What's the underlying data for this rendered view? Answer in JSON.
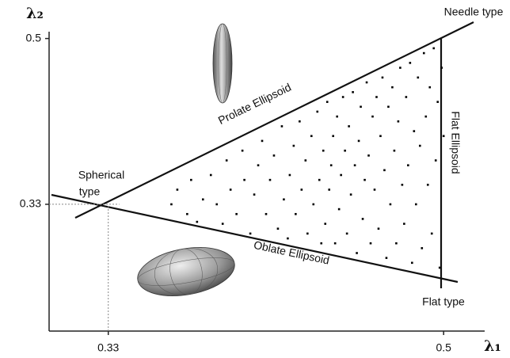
{
  "chart_data": {
    "type": "scatter",
    "x_label": "λ₁",
    "y_label": "λ₂",
    "annotations": [
      "Needle type",
      "Prolate Ellipsoid",
      "Flat Ellipsoid",
      "Spherical",
      "type",
      "Oblate Ellipsoid",
      "Flat type"
    ],
    "xlim": [
      0.3,
      0.52
    ],
    "ylim": [
      0.2,
      0.507
    ],
    "xticks": [
      0.33,
      0.5
    ],
    "yticks": [
      0.33,
      0.5
    ],
    "color": "#000000",
    "x": [
      0.362,
      0.365,
      0.37,
      0.372,
      0.378,
      0.375,
      0.382,
      0.385,
      0.388,
      0.39,
      0.392,
      0.395,
      0.398,
      0.399,
      0.402,
      0.404,
      0.406,
      0.408,
      0.41,
      0.412,
      0.414,
      0.416,
      0.418,
      0.419,
      0.421,
      0.422,
      0.424,
      0.425,
      0.427,
      0.428,
      0.43,
      0.431,
      0.433,
      0.434,
      0.436,
      0.437,
      0.438,
      0.439,
      0.44,
      0.441,
      0.442,
      0.443,
      0.444,
      0.445,
      0.446,
      0.447,
      0.448,
      0.449,
      0.45,
      0.451,
      0.452,
      0.453,
      0.454,
      0.455,
      0.456,
      0.457,
      0.458,
      0.459,
      0.46,
      0.461,
      0.462,
      0.463,
      0.464,
      0.465,
      0.466,
      0.467,
      0.468,
      0.469,
      0.47,
      0.471,
      0.472,
      0.473,
      0.474,
      0.475,
      0.476,
      0.477,
      0.478,
      0.479,
      0.48,
      0.481,
      0.482,
      0.483,
      0.484,
      0.485,
      0.486,
      0.487,
      0.488,
      0.489,
      0.49,
      0.491,
      0.492,
      0.493,
      0.494,
      0.495,
      0.496,
      0.497,
      0.498,
      0.499,
      0.5
    ],
    "y": [
      0.33,
      0.345,
      0.32,
      0.355,
      0.335,
      0.312,
      0.36,
      0.33,
      0.31,
      0.375,
      0.345,
      0.32,
      0.385,
      0.355,
      0.3,
      0.34,
      0.37,
      0.395,
      0.32,
      0.355,
      0.38,
      0.305,
      0.41,
      0.335,
      0.295,
      0.36,
      0.39,
      0.32,
      0.415,
      0.345,
      0.375,
      0.3,
      0.4,
      0.33,
      0.425,
      0.355,
      0.29,
      0.385,
      0.31,
      0.435,
      0.345,
      0.37,
      0.4,
      0.29,
      0.42,
      0.325,
      0.36,
      0.44,
      0.385,
      0.3,
      0.41,
      0.34,
      0.445,
      0.37,
      0.28,
      0.395,
      0.43,
      0.315,
      0.355,
      0.455,
      0.38,
      0.29,
      0.42,
      0.345,
      0.44,
      0.305,
      0.4,
      0.46,
      0.365,
      0.275,
      0.43,
      0.33,
      0.45,
      0.385,
      0.29,
      0.415,
      0.47,
      0.35,
      0.31,
      0.44,
      0.37,
      0.475,
      0.27,
      0.405,
      0.33,
      0.46,
      0.39,
      0.285,
      0.485,
      0.42,
      0.35,
      0.45,
      0.3,
      0.49,
      0.375,
      0.435,
      0.265,
      0.47,
      0.4
    ]
  }
}
